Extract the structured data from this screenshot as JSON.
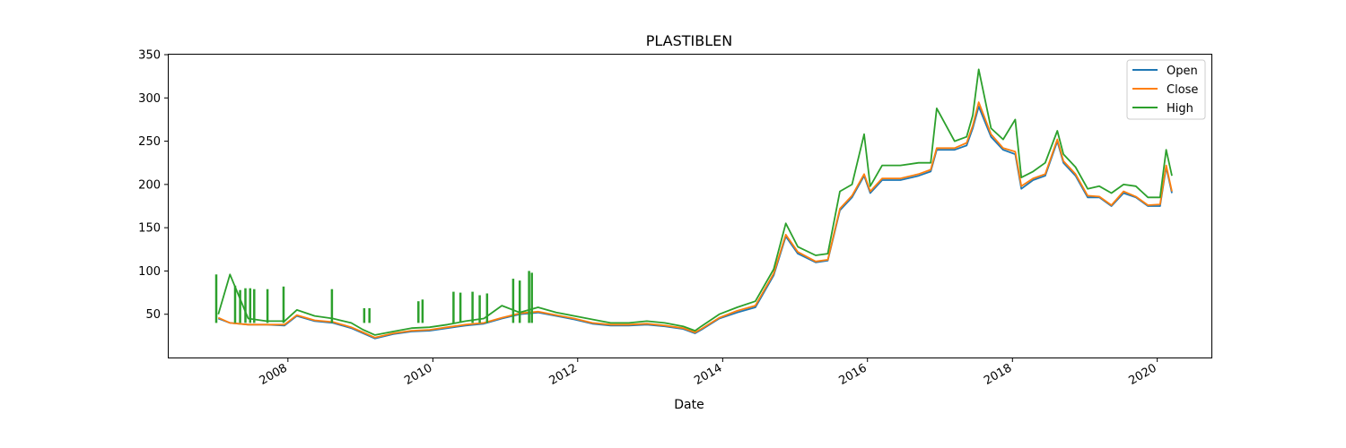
{
  "chart_data": {
    "type": "line",
    "title": "PLASTIBLEN",
    "xlabel": "Date",
    "ylabel": "",
    "xlim": [
      "2006-05-10",
      "2020-09-30"
    ],
    "ylim": [
      0,
      350
    ],
    "x_ticks": [
      "2008",
      "2010",
      "2012",
      "2014",
      "2016",
      "2018",
      "2020"
    ],
    "y_ticks": [
      50,
      100,
      150,
      200,
      250,
      300,
      350
    ],
    "grid": false,
    "legend_position": "top-right",
    "colors": {
      "Open": "#1f77b4",
      "Close": "#ff7f0e",
      "High": "#2ca02c"
    },
    "x": [
      "2007-01",
      "2007-03",
      "2007-06",
      "2007-09",
      "2007-12",
      "2008-02",
      "2008-05",
      "2008-08",
      "2008-11",
      "2009-01",
      "2009-03",
      "2009-06",
      "2009-09",
      "2009-12",
      "2010-03",
      "2010-06",
      "2010-09",
      "2010-12",
      "2011-03",
      "2011-06",
      "2011-09",
      "2011-12",
      "2012-03",
      "2012-06",
      "2012-09",
      "2012-12",
      "2013-03",
      "2013-06",
      "2013-08",
      "2013-09",
      "2013-12",
      "2014-03",
      "2014-06",
      "2014-09",
      "2014-11",
      "2015-01",
      "2015-04",
      "2015-06",
      "2015-08",
      "2015-10",
      "2015-12",
      "2016-01",
      "2016-03",
      "2016-06",
      "2016-09",
      "2016-11",
      "2016-12",
      "2017-03",
      "2017-05",
      "2017-06",
      "2017-07",
      "2017-09",
      "2017-11",
      "2018-01",
      "2018-02",
      "2018-04",
      "2018-06",
      "2018-08",
      "2018-09",
      "2018-11",
      "2019-01",
      "2019-03",
      "2019-05",
      "2019-07",
      "2019-09",
      "2019-11",
      "2020-01",
      "2020-02",
      "2020-03"
    ],
    "series": [
      {
        "name": "Open",
        "values": [
          45,
          40,
          38,
          38,
          37,
          48,
          42,
          40,
          34,
          28,
          22,
          27,
          30,
          31,
          34,
          37,
          39,
          45,
          50,
          52,
          48,
          44,
          39,
          37,
          37,
          38,
          36,
          33,
          28,
          32,
          45,
          52,
          58,
          95,
          140,
          120,
          110,
          112,
          170,
          185,
          210,
          190,
          205,
          205,
          210,
          215,
          240,
          240,
          245,
          265,
          290,
          255,
          240,
          235,
          195,
          205,
          210,
          250,
          225,
          210,
          185,
          185,
          175,
          190,
          185,
          175,
          175,
          220,
          190
        ]
      },
      {
        "name": "Close",
        "values": [
          46,
          40,
          38,
          38,
          38,
          49,
          43,
          41,
          35,
          29,
          23,
          28,
          31,
          32,
          35,
          38,
          40,
          46,
          51,
          53,
          49,
          45,
          40,
          38,
          38,
          39,
          37,
          34,
          29,
          33,
          46,
          54,
          60,
          97,
          142,
          122,
          111,
          113,
          172,
          187,
          212,
          192,
          207,
          207,
          212,
          217,
          242,
          242,
          248,
          268,
          295,
          258,
          242,
          238,
          198,
          207,
          212,
          252,
          227,
          212,
          187,
          186,
          176,
          192,
          186,
          176,
          177,
          222,
          192
        ]
      },
      {
        "name": "High",
        "values": [
          50,
          96,
          45,
          42,
          42,
          55,
          48,
          45,
          40,
          32,
          26,
          30,
          34,
          35,
          38,
          42,
          45,
          60,
          52,
          58,
          52,
          48,
          44,
          40,
          40,
          42,
          40,
          36,
          31,
          36,
          50,
          58,
          65,
          102,
          155,
          128,
          118,
          120,
          192,
          200,
          258,
          198,
          222,
          222,
          225,
          225,
          288,
          250,
          255,
          280,
          333,
          265,
          252,
          275,
          208,
          215,
          225,
          262,
          235,
          220,
          195,
          198,
          190,
          200,
          198,
          185,
          185,
          240,
          210
        ]
      }
    ],
    "spikes": {
      "note_series": "High",
      "dates": [
        "2007-01-05",
        "2007-04-10",
        "2007-05-05",
        "2007-06-01",
        "2007-06-25",
        "2007-07-15",
        "2007-09-20",
        "2007-12-10",
        "2008-08-10",
        "2009-01-20",
        "2009-02-15",
        "2009-10-20",
        "2009-11-10",
        "2010-04-15",
        "2010-05-20",
        "2010-07-20",
        "2010-08-25",
        "2010-10-01",
        "2011-02-10",
        "2011-03-15",
        "2011-05-01",
        "2011-05-15"
      ],
      "values": [
        96,
        83,
        78,
        80,
        80,
        79,
        79,
        82,
        79,
        57,
        57,
        65,
        67,
        76,
        75,
        76,
        72,
        74,
        91,
        89,
        100,
        98
      ]
    }
  }
}
